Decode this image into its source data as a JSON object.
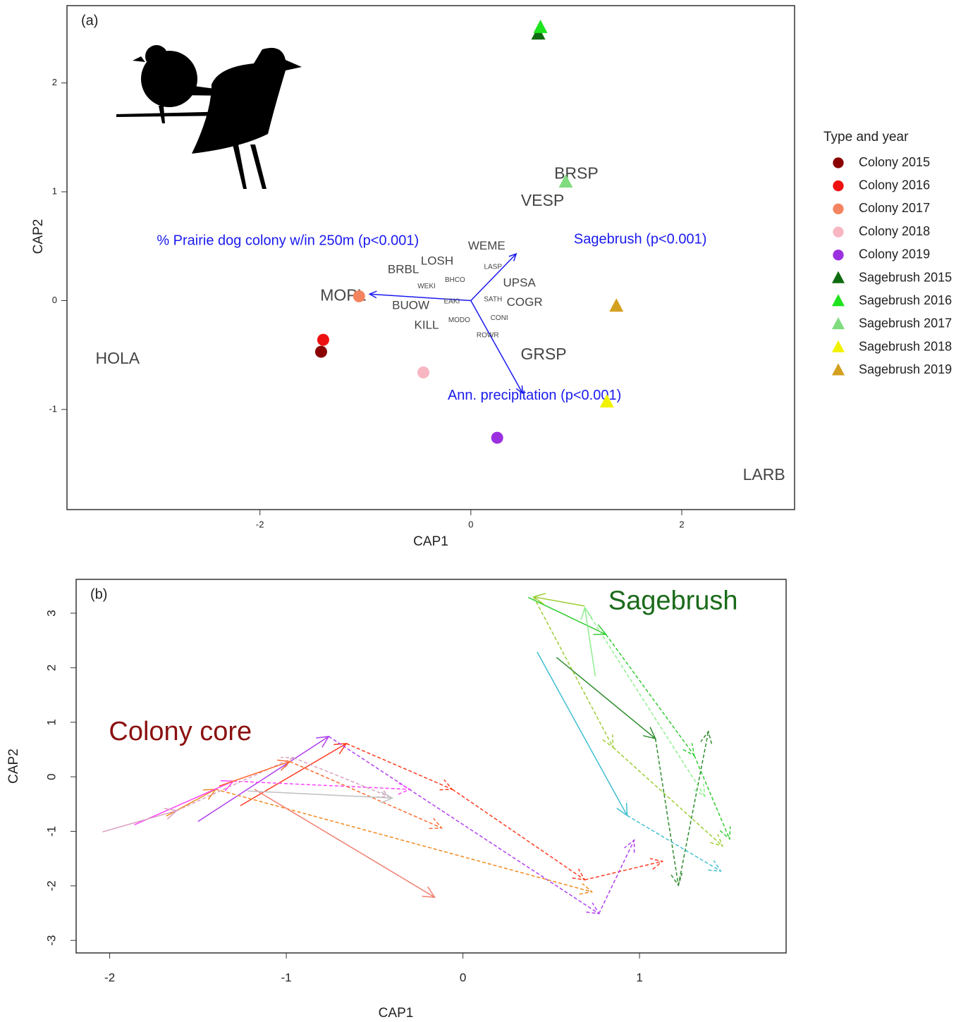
{
  "chart_data": [
    {
      "type": "scatter",
      "annotation": "(a)",
      "xlabel": "CAP1",
      "ylabel": "CAP2",
      "xlim": [
        -3.83,
        3.07
      ],
      "ylim": [
        -1.92,
        2.71
      ],
      "xticks": [
        -2,
        0,
        2
      ],
      "yticks": [
        -1,
        0,
        1,
        2
      ],
      "legend_title": "Type and year",
      "legend": "right",
      "series": [
        {
          "name": "Colony 2015",
          "color": "#8b0000",
          "marker": "circle",
          "x": [
            -1.42
          ],
          "y": [
            -0.47
          ]
        },
        {
          "name": "Colony 2016",
          "color": "#ee1111",
          "marker": "circle",
          "x": [
            -1.4
          ],
          "y": [
            -0.36
          ]
        },
        {
          "name": "Colony 2017",
          "color": "#f4845f",
          "marker": "circle",
          "x": [
            -1.06
          ],
          "y": [
            0.04
          ]
        },
        {
          "name": "Colony 2018",
          "color": "#f7b6c2",
          "marker": "circle",
          "x": [
            -0.45
          ],
          "y": [
            -0.66
          ]
        },
        {
          "name": "Colony 2019",
          "color": "#9b30e0",
          "marker": "circle",
          "x": [
            0.25
          ],
          "y": [
            -1.26
          ]
        },
        {
          "name": "Sagebrush 2015",
          "color": "#0f6b0f",
          "marker": "triangle",
          "x": [
            0.64
          ],
          "y": [
            2.45
          ]
        },
        {
          "name": "Sagebrush 2016",
          "color": "#1ee31e",
          "marker": "triangle",
          "x": [
            0.66
          ],
          "y": [
            2.51
          ]
        },
        {
          "name": "Sagebrush 2017",
          "color": "#7fdc7f",
          "marker": "triangle",
          "x": [
            0.9
          ],
          "y": [
            1.09
          ]
        },
        {
          "name": "Sagebrush 2018",
          "color": "#f2f200",
          "marker": "triangle",
          "x": [
            1.29
          ],
          "y": [
            -0.93
          ]
        },
        {
          "name": "Sagebrush 2019",
          "color": "#d4a020",
          "marker": "triangle",
          "x": [
            1.38
          ],
          "y": [
            -0.05
          ]
        }
      ],
      "species": {
        "color": "#444444",
        "labels": [
          "HOLA",
          "MOPL",
          "BRSP",
          "VESP",
          "WEME",
          "LOSH",
          "LASP",
          "BRBL",
          "BHCO",
          "WEKI",
          "UPSA",
          "EAKI",
          "SATH",
          "COGR",
          "BUOW",
          "CONI",
          "MODO",
          "KILL",
          "ROWR",
          "GRSP",
          "LARB"
        ],
        "x": [
          -3.35,
          -1.21,
          1.0,
          0.68,
          0.15,
          -0.32,
          0.21,
          -0.64,
          -0.15,
          -0.42,
          0.46,
          -0.18,
          0.21,
          0.51,
          -0.57,
          0.27,
          -0.11,
          -0.42,
          0.16,
          0.69,
          2.78
        ],
        "y": [
          -0.54,
          0.04,
          1.16,
          0.91,
          0.5,
          0.36,
          0.31,
          0.28,
          0.19,
          0.13,
          0.16,
          -0.01,
          0.01,
          -0.02,
          -0.05,
          -0.16,
          -0.18,
          -0.23,
          -0.32,
          -0.5,
          -1.61
        ]
      },
      "vectors": {
        "color": "#1a1aee",
        "labels": [
          "% Prairie dog colony w/in 250m (p<0.001)",
          "Sagebrush (p<0.001)",
          "Ann. precipitation (p<0.001)"
        ],
        "x": [
          -0.96,
          0.43,
          0.49
        ],
        "y": [
          0.06,
          0.43,
          -0.85
        ]
      }
    },
    {
      "type": "arrows",
      "annotation": "(b)",
      "xlabel": "CAP1",
      "ylabel": "CAP2",
      "xlim": [
        -2.19,
        1.83
      ],
      "ylim": [
        -3.23,
        3.62
      ],
      "xticks": [
        -2,
        -1,
        0,
        1
      ],
      "yticks": [
        -3,
        -2,
        -1,
        0,
        1,
        2,
        3
      ],
      "annotations": [
        {
          "text": "Colony core",
          "x": -1.6,
          "y": 0.8,
          "color": "#8b1010"
        },
        {
          "text": "Sagebrush",
          "x": 1.19,
          "y": 3.2,
          "color": "#1a6b1a"
        }
      ],
      "series": [
        {
          "color": "#2e8b2e",
          "x": [
            0.53,
            1.09,
            1.22,
            1.39
          ],
          "y": [
            2.19,
            0.7,
            -1.99,
            0.83
          ]
        },
        {
          "color": "#32cd32",
          "x": [
            0.37,
            0.81,
            1.31,
            1.51
          ],
          "y": [
            3.29,
            2.61,
            0.39,
            -1.14
          ]
        },
        {
          "color": "#9acd32",
          "x": [
            0.69,
            0.4,
            0.85,
            1.47
          ],
          "y": [
            3.13,
            3.3,
            0.54,
            -1.27
          ]
        },
        {
          "color": "#90ee90",
          "x": [
            0.75,
            0.69,
            1.37
          ],
          "y": [
            1.84,
            3.1,
            -0.36
          ]
        },
        {
          "color": "#40c0d0",
          "x": [
            0.42,
            0.93,
            1.46
          ],
          "y": [
            2.29,
            -0.71,
            -1.73
          ]
        },
        {
          "color": "#ff3b1f",
          "x": [
            -1.26,
            -0.66,
            -0.06,
            0.69,
            1.13
          ],
          "y": [
            -0.53,
            0.61,
            -0.23,
            -1.89,
            -1.55
          ]
        },
        {
          "color": "#b040f0",
          "x": [
            -1.5,
            -0.76,
            0.77,
            0.97
          ],
          "y": [
            -0.82,
            0.74,
            -2.51,
            -1.16
          ]
        },
        {
          "color": "#f08a20",
          "x": [
            -1.68,
            -1.4,
            0.73
          ],
          "y": [
            -0.72,
            -0.23,
            -2.11
          ]
        },
        {
          "color": "#ff40ff",
          "x": [
            -1.86,
            -1.3,
            -0.3
          ],
          "y": [
            -0.88,
            -0.08,
            -0.23
          ]
        },
        {
          "color": "#f08070",
          "x": [
            -1.18,
            -0.16
          ],
          "y": [
            -0.23,
            -2.21
          ]
        },
        {
          "color": "#d8a0c0",
          "x": [
            -2.04,
            -1.62,
            -0.96,
            -0.42
          ],
          "y": [
            -1.01,
            -0.62,
            0.35,
            -0.36
          ]
        },
        {
          "color": "#ff6a30",
          "x": [
            -1.38,
            -0.98,
            -0.12
          ],
          "y": [
            -0.17,
            0.28,
            -0.94
          ]
        },
        {
          "color": "#c0c0c0",
          "x": [
            -1.22,
            -0.4
          ],
          "y": [
            -0.26,
            -0.39
          ]
        }
      ]
    }
  ]
}
